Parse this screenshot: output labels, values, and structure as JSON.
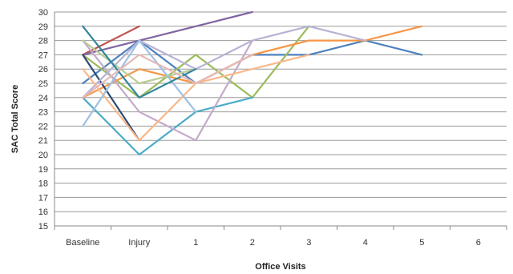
{
  "chart_data": {
    "type": "line",
    "title": "",
    "xlabel": "Office Visits",
    "ylabel": "SAC Total Score",
    "categories": [
      "Baseline",
      "Injury",
      "1",
      "2",
      "3",
      "4",
      "5",
      "6"
    ],
    "ylim": [
      15,
      30
    ],
    "yticks": [
      15,
      16,
      17,
      18,
      19,
      20,
      21,
      22,
      23,
      24,
      25,
      26,
      27,
      28,
      29,
      30
    ],
    "grid": true,
    "legend": "none",
    "series": [
      {
        "color": "#4e81bd",
        "values": [
          25,
          28,
          25,
          27,
          27,
          28,
          27,
          null
        ]
      },
      {
        "color": "#c0504d",
        "values": [
          27,
          29,
          null,
          null,
          null,
          null,
          null,
          null
        ]
      },
      {
        "color": "#9bbb59",
        "values": [
          27,
          24,
          27,
          24,
          29,
          null,
          null,
          null
        ]
      },
      {
        "color": "#8064a2",
        "values": [
          27,
          28,
          29,
          30,
          null,
          null,
          null,
          null
        ]
      },
      {
        "color": "#4bacc6",
        "values": [
          24,
          20,
          23,
          24,
          null,
          null,
          null,
          null
        ]
      },
      {
        "color": "#f79646",
        "values": [
          24,
          26,
          25,
          27,
          28,
          28,
          29,
          null
        ]
      },
      {
        "color": "#2c4d75",
        "values": [
          27,
          21,
          null,
          null,
          null,
          null,
          null,
          null
        ]
      },
      {
        "color": "#c3aac9",
        "values": [
          28,
          23,
          21,
          28,
          null,
          null,
          null,
          null
        ]
      },
      {
        "color": "#b9cd96",
        "values": [
          28,
          25,
          26,
          null,
          null,
          null,
          null,
          null
        ]
      },
      {
        "color": "#b7b2d4",
        "values": [
          24,
          28,
          26,
          28,
          29,
          28,
          null,
          null
        ]
      },
      {
        "color": "#f9b88a",
        "values": [
          26,
          21,
          25,
          26,
          27,
          null,
          null,
          null
        ]
      },
      {
        "color": "#9ec0e4",
        "values": [
          22,
          28,
          23,
          null,
          null,
          null,
          null,
          null
        ]
      },
      {
        "color": "#31859c",
        "values": [
          29,
          24,
          26,
          null,
          null,
          null,
          null,
          null
        ]
      },
      {
        "color": "#e6b9b8",
        "values": [
          24,
          27,
          25,
          27,
          null,
          null,
          null,
          null
        ]
      }
    ]
  }
}
